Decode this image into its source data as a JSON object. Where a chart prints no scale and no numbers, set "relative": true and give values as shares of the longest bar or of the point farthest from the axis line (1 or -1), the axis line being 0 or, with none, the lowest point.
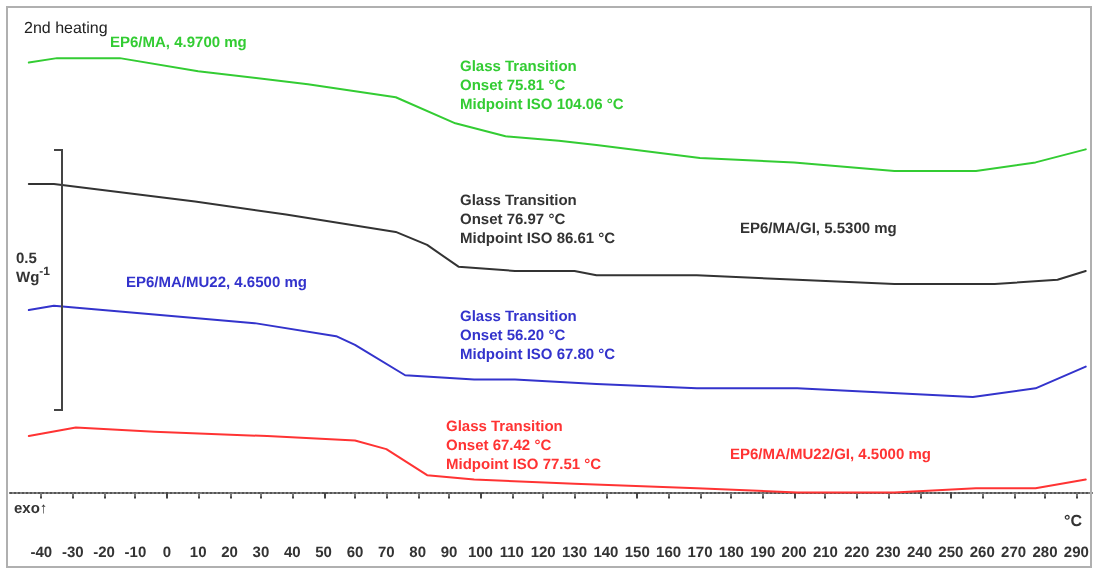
{
  "chart_data": {
    "type": "line",
    "title": "2nd heating",
    "xlabel": "°C",
    "relative": true,
    "legend": false,
    "grid": false,
    "marker": "none",
    "line_style": "solid",
    "xlim": [
      -50,
      295
    ],
    "xticks": [
      -40,
      -30,
      -20,
      -10,
      0,
      10,
      20,
      30,
      40,
      50,
      60,
      70,
      80,
      90,
      100,
      110,
      120,
      130,
      140,
      150,
      160,
      170,
      180,
      190,
      200,
      210,
      220,
      230,
      240,
      250,
      260,
      270,
      280,
      290
    ],
    "series": [
      {
        "name": "EP6/MA, 4.9700 mg",
        "color": "#33cc33",
        "x": [
          -44,
          -35,
          -15,
          10,
          45,
          73,
          92,
          108,
          125,
          137,
          170,
          200,
          232,
          258,
          277,
          293
        ],
        "values": [
          0.99,
          1,
          1,
          0.97,
          0.94,
          0.91,
          0.85,
          0.82,
          0.81,
          0.8,
          0.77,
          0.76,
          0.74,
          0.74,
          0.76,
          0.79
        ]
      },
      {
        "name": "EP6/MA/GI, 5.5300 mg",
        "color": "#333333",
        "x": [
          -44,
          -36,
          9,
          38,
          73,
          83,
          93,
          111,
          130,
          137,
          169,
          201,
          232,
          264,
          284,
          293
        ],
        "values": [
          0.71,
          0.71,
          0.67,
          0.64,
          0.6,
          0.57,
          0.52,
          0.51,
          0.51,
          0.5,
          0.5,
          0.49,
          0.48,
          0.48,
          0.49,
          0.51
        ]
      },
      {
        "name": "EP6/MA/MU22, 4.6500 mg",
        "color": "#3333cc",
        "x": [
          -44,
          -36,
          -4,
          28,
          54,
          60,
          76,
          98,
          111,
          137,
          169,
          201,
          257,
          277,
          293
        ],
        "values": [
          0.42,
          0.43,
          0.41,
          0.39,
          0.36,
          0.34,
          0.27,
          0.26,
          0.26,
          0.25,
          0.24,
          0.24,
          0.22,
          0.24,
          0.29
        ]
      },
      {
        "name": "EP6/MA/MU22/GI, 4.5000 mg",
        "color": "#ff3333",
        "x": [
          -44,
          -29,
          -4,
          32,
          60,
          70,
          83,
          98,
          130,
          169,
          201,
          232,
          258,
          277,
          293
        ],
        "values": [
          0.13,
          0.15,
          0.14,
          0.13,
          0.12,
          0.1,
          0.04,
          0.03,
          0.02,
          0.01,
          0,
          0,
          0.01,
          0.01,
          0.03
        ]
      }
    ],
    "annotations": [
      "Glass Transition\nOnset 75.81 °C\nMidpoint ISO 104.06 °C",
      "Glass Transition\nOnset 76.97 °C\nMidpoint ISO 86.61 °C",
      "Glass Transition\nOnset 56.20 °C\nMidpoint ISO 67.80 °C",
      "Glass Transition\nOnset 67.42 °C\nMidpoint ISO 77.51 °C",
      "0.5\nWg$^{-1}$",
      "exo↑"
    ]
  }
}
